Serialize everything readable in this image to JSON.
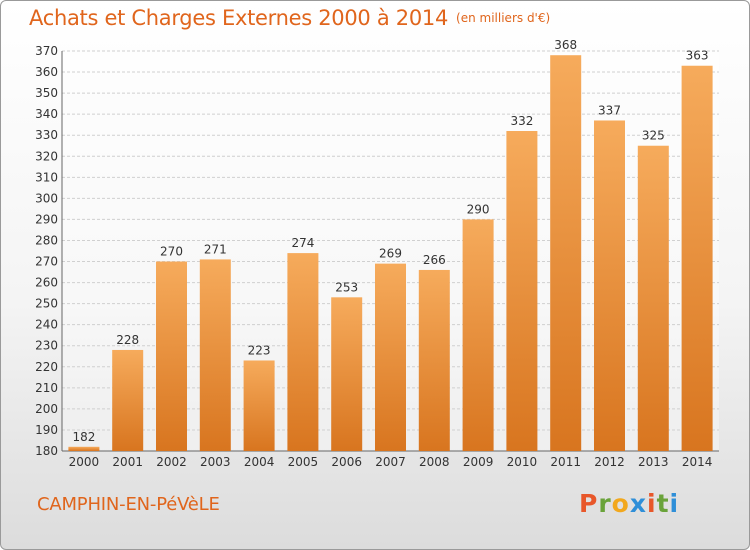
{
  "header": {
    "title": "Achats et Charges Externes 2000 à 2014",
    "unit": "(en milliers d'€)"
  },
  "footer": {
    "commune": "CAMPHIN-EN-PéVèLE",
    "logo_text": "Proxiti",
    "logo_colors": [
      "#e8572a",
      "#6aa33a",
      "#f2a81d",
      "#2f8fd8",
      "#e8572a",
      "#6aa33a",
      "#2f8fd8"
    ]
  },
  "colors": {
    "bar_light": "#f6ab5c",
    "bar_dark": "#d8751f",
    "grid": "#d0d0d0",
    "axis_text": "#333333",
    "accent": "#e0651c"
  },
  "chart_data": {
    "type": "bar",
    "title": "Achats et Charges Externes 2000 à 2014",
    "categories": [
      "2000",
      "2001",
      "2002",
      "2003",
      "2004",
      "2005",
      "2006",
      "2007",
      "2008",
      "2009",
      "2010",
      "2011",
      "2012",
      "2013",
      "2014"
    ],
    "values": [
      182,
      228,
      270,
      271,
      223,
      274,
      253,
      269,
      266,
      290,
      332,
      368,
      337,
      325,
      363
    ],
    "ylim": [
      180,
      370
    ],
    "yticks": [
      180,
      190,
      200,
      210,
      220,
      230,
      240,
      250,
      260,
      270,
      280,
      290,
      300,
      310,
      320,
      330,
      340,
      350,
      360,
      370
    ],
    "grid": true,
    "data_labels": true
  }
}
